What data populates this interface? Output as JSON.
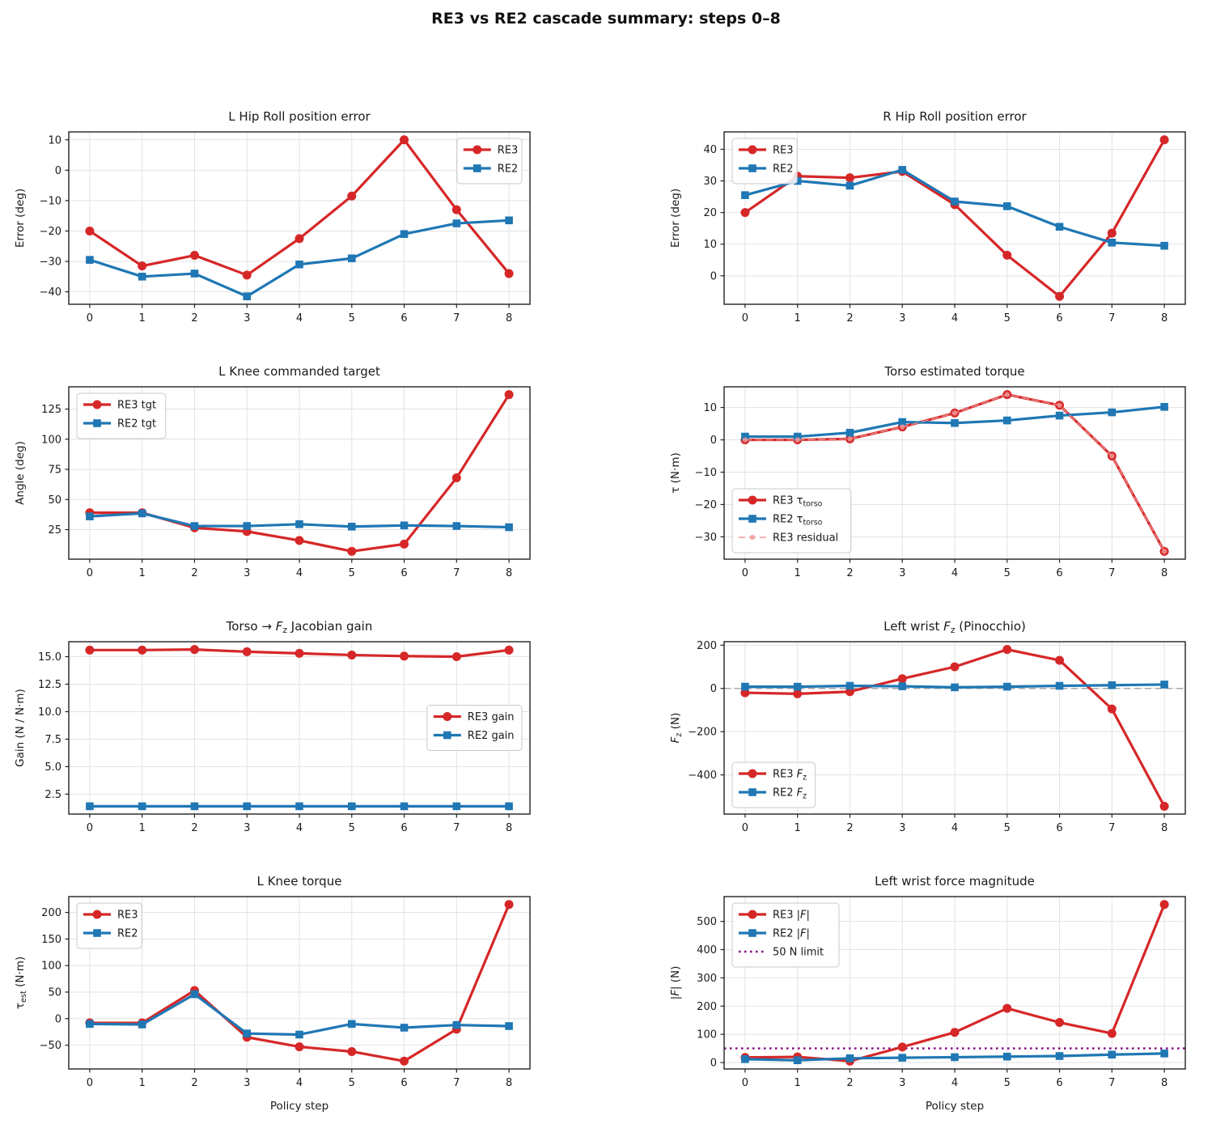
{
  "title": "RE3 vs RE2 cascade summary: steps 0–8",
  "colors": {
    "re3": "#d62728",
    "re2": "#1f77b4",
    "residual": "#ef9a9a",
    "limit": "#800080",
    "zeroline": "#999999",
    "grid": "#e2e2e2",
    "spine": "#222222",
    "text": "#1a1a1a"
  },
  "chart_data": [
    {
      "id": "l-hip-roll-position-error",
      "type": "line",
      "title": "L Hip Roll position error",
      "xlabel": "",
      "ylabel": "Error (deg)",
      "x": [
        0,
        1,
        2,
        3,
        4,
        5,
        6,
        7,
        8
      ],
      "ylim": [
        -44.1,
        12.6
      ],
      "yticks": [
        10,
        0,
        -10,
        -20,
        -30,
        -40
      ],
      "ytick_labels": [
        "10",
        "0",
        "−10",
        "−20",
        "−30",
        "−40"
      ],
      "legend": "upper right",
      "series": [
        {
          "name": "RE3",
          "label": "RE3",
          "color": "re3",
          "marker": "circle",
          "style": "solid",
          "values": [
            -20,
            -31.5,
            -28,
            -34.5,
            -22.5,
            -8.5,
            10,
            -13,
            -34
          ]
        },
        {
          "name": "RE2",
          "label": "RE2",
          "color": "re2",
          "marker": "square",
          "style": "solid",
          "values": [
            -29.5,
            -35,
            -34,
            -41.5,
            -31,
            -29,
            -21,
            -17.5,
            -16.5
          ]
        }
      ]
    },
    {
      "id": "r-hip-roll-position-error",
      "type": "line",
      "title": "R Hip Roll position error",
      "xlabel": "",
      "ylabel": "Error (deg)",
      "x": [
        0,
        1,
        2,
        3,
        4,
        5,
        6,
        7,
        8
      ],
      "ylim": [
        -9.0,
        45.5
      ],
      "yticks": [
        40,
        30,
        20,
        10,
        0
      ],
      "ytick_labels": [
        "40",
        "30",
        "20",
        "10",
        "0"
      ],
      "legend": "upper left",
      "series": [
        {
          "name": "RE3",
          "label": "RE3",
          "color": "re3",
          "marker": "circle",
          "style": "solid",
          "values": [
            20,
            31.5,
            31,
            33,
            22.5,
            6.5,
            -6.5,
            13.5,
            43
          ]
        },
        {
          "name": "RE2",
          "label": "RE2",
          "color": "re2",
          "marker": "square",
          "style": "solid",
          "values": [
            25.5,
            30,
            28.5,
            33.5,
            23.5,
            22,
            15.5,
            10.5,
            9.5
          ]
        }
      ]
    },
    {
      "id": "l-knee-commanded-target",
      "type": "line",
      "title": "L Knee commanded target",
      "xlabel": "",
      "ylabel": "Angle (deg)",
      "x": [
        0,
        1,
        2,
        3,
        4,
        5,
        6,
        7,
        8
      ],
      "ylim": [
        0.5,
        143.5
      ],
      "yticks": [
        125,
        100,
        75,
        50,
        25
      ],
      "ytick_labels": [
        "125",
        "100",
        "75",
        "50",
        "25"
      ],
      "legend": "upper left",
      "series": [
        {
          "name": "RE3 tgt",
          "label": "RE3 tgt",
          "color": "re3",
          "marker": "circle",
          "style": "solid",
          "values": [
            39,
            39,
            26.5,
            23.5,
            16,
            7,
            13,
            68,
            137
          ]
        },
        {
          "name": "RE2 tgt",
          "label": "RE2 tgt",
          "color": "re2",
          "marker": "square",
          "style": "solid",
          "values": [
            36,
            38.5,
            28,
            28,
            29.5,
            27.5,
            28.5,
            28,
            27
          ]
        }
      ]
    },
    {
      "id": "torso-estimated-torque",
      "type": "line",
      "title": "Torso estimated torque",
      "xlabel": "",
      "ylabel": "τ (N·m)",
      "x": [
        0,
        1,
        2,
        3,
        4,
        5,
        6,
        7,
        8
      ],
      "ylim": [
        -36.9,
        16.4
      ],
      "yticks": [
        10,
        0,
        -10,
        -20,
        -30
      ],
      "ytick_labels": [
        "10",
        "0",
        "−10",
        "−20",
        "−30"
      ],
      "legend": "lower left",
      "series": [
        {
          "name": "RE3 torso torque",
          "label": "RE3 τ_{torso}",
          "color": "re3",
          "marker": "circle",
          "style": "solid",
          "values": [
            0,
            0,
            0.3,
            4,
            8.3,
            14,
            10.7,
            -5,
            -34.5
          ]
        },
        {
          "name": "RE2 torso torque",
          "label": "RE2 τ_{torso}",
          "color": "re2",
          "marker": "square",
          "style": "solid",
          "values": [
            1,
            1,
            2.2,
            5.5,
            5.2,
            6,
            7.5,
            8.5,
            10.2
          ]
        },
        {
          "name": "RE3 residual",
          "label": "RE3 residual",
          "color": "residual",
          "marker": "circle",
          "style": "dashed",
          "width": 1.6,
          "msize": 3.2,
          "opacity": 0.8,
          "values": [
            0,
            0,
            0.3,
            4,
            8.3,
            14,
            10.7,
            -5,
            -34.5
          ]
        }
      ]
    },
    {
      "id": "torso-fz-jacobian-gain",
      "type": "line",
      "title": "Torso → *F*_{z} Jacobian gain",
      "xlabel": "",
      "ylabel": "Gain (N / N·m)",
      "x": [
        0,
        1,
        2,
        3,
        4,
        5,
        6,
        7,
        8
      ],
      "ylim": [
        0.69,
        16.36
      ],
      "yticks": [
        15.0,
        12.5,
        10.0,
        7.5,
        5.0,
        2.5
      ],
      "ytick_labels": [
        "15.0",
        "12.5",
        "10.0",
        "7.5",
        "5.0",
        "2.5"
      ],
      "legend": "center right",
      "series": [
        {
          "name": "RE3 gain",
          "label": "RE3 gain",
          "color": "re3",
          "marker": "circle",
          "style": "solid",
          "values": [
            15.6,
            15.6,
            15.65,
            15.45,
            15.3,
            15.15,
            15.05,
            15.0,
            15.6
          ]
        },
        {
          "name": "RE2 gain",
          "label": "RE2 gain",
          "color": "re2",
          "marker": "square",
          "style": "solid",
          "values": [
            1.4,
            1.4,
            1.4,
            1.4,
            1.4,
            1.4,
            1.4,
            1.4,
            1.4
          ]
        }
      ]
    },
    {
      "id": "left-wrist-fz-pinocchio",
      "type": "line",
      "title": "Left wrist *F*_{z} (Pinocchio)",
      "xlabel": "",
      "ylabel": "*F*_{z} (N)",
      "x": [
        0,
        1,
        2,
        3,
        4,
        5,
        6,
        7,
        8
      ],
      "ylim": [
        -581,
        216
      ],
      "yticks": [
        200,
        0,
        -200,
        -400
      ],
      "ytick_labels": [
        "200",
        "0",
        "−200",
        "−400"
      ],
      "legend": "lower left",
      "hlines": [
        {
          "y": 0,
          "color": "zeroline",
          "style": "dashed",
          "width": 1.2,
          "label": null
        }
      ],
      "series": [
        {
          "name": "RE3 Fz",
          "label": "RE3 *F*_{z}",
          "color": "re3",
          "marker": "circle",
          "style": "solid",
          "values": [
            -20,
            -25,
            -15,
            45,
            100,
            180,
            130,
            -95,
            -545
          ]
        },
        {
          "name": "RE2 Fz",
          "label": "RE2 *F*_{z}",
          "color": "re2",
          "marker": "square",
          "style": "solid",
          "values": [
            8,
            8,
            12,
            10,
            5,
            8,
            12,
            15,
            18
          ]
        }
      ]
    },
    {
      "id": "l-knee-torque",
      "type": "line",
      "title": "L Knee torque",
      "xlabel": "Policy step",
      "ylabel": "τ_{est} (N·m)",
      "x": [
        0,
        1,
        2,
        3,
        4,
        5,
        6,
        7,
        8
      ],
      "ylim": [
        -94.8,
        229.8
      ],
      "yticks": [
        200,
        150,
        100,
        50,
        0,
        -50
      ],
      "ytick_labels": [
        "200",
        "150",
        "100",
        "50",
        "0",
        "−50"
      ],
      "legend": "upper left",
      "series": [
        {
          "name": "RE3",
          "label": "RE3",
          "color": "re3",
          "marker": "circle",
          "style": "solid",
          "values": [
            -8,
            -8,
            53,
            -35,
            -53,
            -62,
            -80,
            -20,
            215
          ]
        },
        {
          "name": "RE2",
          "label": "RE2",
          "color": "re2",
          "marker": "square",
          "style": "solid",
          "values": [
            -10,
            -11,
            46,
            -28,
            -30,
            -10,
            -17,
            -12,
            -14
          ]
        }
      ]
    },
    {
      "id": "left-wrist-force-magnitude",
      "type": "line",
      "title": "Left wrist force magnitude",
      "xlabel": "Policy step",
      "ylabel": "|*F*| (N)",
      "x": [
        0,
        1,
        2,
        3,
        4,
        5,
        6,
        7,
        8
      ],
      "ylim": [
        -22.8,
        587.8
      ],
      "yticks": [
        500,
        400,
        300,
        200,
        100,
        0
      ],
      "ytick_labels": [
        "500",
        "400",
        "300",
        "200",
        "100",
        "0"
      ],
      "legend": "upper left",
      "hlines": [
        {
          "y": 50,
          "color": "limit",
          "style": "dotted",
          "width": 2.4,
          "label": "50 N limit"
        }
      ],
      "series": [
        {
          "name": "RE3 |F|",
          "label": "RE3 |*F*|",
          "color": "re3",
          "marker": "circle",
          "style": "solid",
          "values": [
            18,
            20,
            5,
            55,
            107,
            192,
            142,
            103,
            560
          ]
        },
        {
          "name": "RE2 |F|",
          "label": "RE2 |*F*|",
          "color": "re2",
          "marker": "square",
          "style": "solid",
          "values": [
            12,
            8,
            15,
            17,
            19,
            21,
            23,
            28,
            32
          ]
        }
      ]
    }
  ]
}
